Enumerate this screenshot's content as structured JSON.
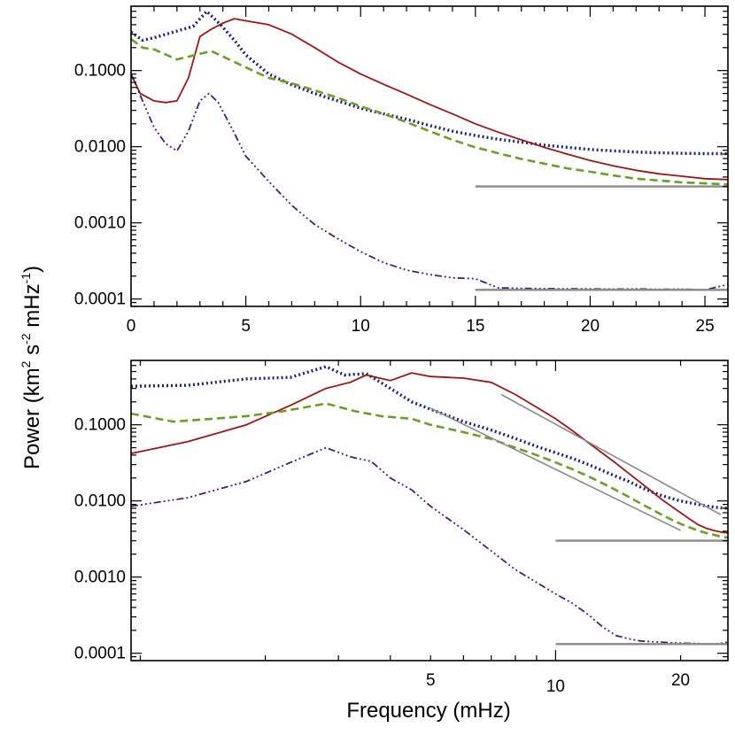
{
  "labels": {
    "ylabel_main": "Power (km",
    "ylabel_sup1": "2",
    "ylabel_s": " s",
    "ylabel_sup2": "-2",
    "ylabel_mhz": " mHz",
    "ylabel_sup3": "-1",
    "ylabel_close": ")",
    "xlabel": "Frequency (mHz)"
  },
  "chart_data": [
    {
      "type": "line",
      "panel": "top",
      "xscale": "linear",
      "yscale": "log",
      "xlim": [
        0,
        26
      ],
      "ylim": [
        8e-05,
        0.7
      ],
      "yticks": [
        0.0001,
        0.001,
        0.01,
        0.1
      ],
      "ytick_labels": [
        "0.0001",
        "0.0010",
        "0.0100",
        "0.1000"
      ],
      "xticks": [
        0,
        5,
        10,
        15,
        20,
        25
      ],
      "xtick_labels": [
        "0",
        "5",
        "10",
        "15",
        "20",
        "25"
      ],
      "series": [
        {
          "name": "dotted-blue",
          "color": "#1a237e",
          "dash": "2,3",
          "width": 3.4,
          "x": [
            0,
            0.5,
            1,
            2,
            2.7,
            3.3,
            3.9,
            4.5,
            5,
            6,
            7,
            8,
            9,
            10,
            11,
            12,
            13,
            14,
            15,
            16,
            17,
            18,
            19,
            20,
            21,
            22,
            23,
            24,
            25,
            26
          ],
          "y": [
            0.32,
            0.25,
            0.27,
            0.33,
            0.38,
            0.6,
            0.4,
            0.25,
            0.16,
            0.09,
            0.065,
            0.05,
            0.04,
            0.032,
            0.027,
            0.023,
            0.019,
            0.016,
            0.014,
            0.0125,
            0.0115,
            0.0105,
            0.0098,
            0.0092,
            0.0088,
            0.0085,
            0.0083,
            0.0082,
            0.0081,
            0.0081
          ]
        },
        {
          "name": "solid-red",
          "color": "#a31414",
          "dash": "",
          "width": 1.8,
          "x": [
            0,
            0.4,
            1,
            1.5,
            2,
            2.5,
            3,
            3.5,
            4,
            4.5,
            5,
            6,
            7,
            8,
            9,
            10,
            11,
            12,
            13,
            14,
            15,
            16,
            17,
            18,
            19,
            20,
            21,
            22,
            23,
            24,
            25,
            26
          ],
          "y": [
            0.09,
            0.05,
            0.04,
            0.038,
            0.04,
            0.08,
            0.28,
            0.35,
            0.42,
            0.48,
            0.45,
            0.4,
            0.3,
            0.2,
            0.13,
            0.09,
            0.066,
            0.049,
            0.036,
            0.027,
            0.02,
            0.0155,
            0.0123,
            0.0098,
            0.008,
            0.0066,
            0.0056,
            0.0049,
            0.0044,
            0.0041,
            0.0038,
            0.0037
          ]
        },
        {
          "name": "dashed-green",
          "color": "#6aa121",
          "dash": "9,5",
          "width": 2.6,
          "x": [
            0,
            0.5,
            1,
            2,
            2.8,
            3.5,
            4.5,
            5,
            6,
            7,
            8,
            9,
            10,
            11,
            12,
            13,
            14,
            15,
            16,
            17,
            18,
            19,
            20,
            21,
            22,
            23,
            24,
            25,
            26
          ],
          "y": [
            0.26,
            0.2,
            0.19,
            0.14,
            0.16,
            0.18,
            0.13,
            0.11,
            0.08,
            0.068,
            0.055,
            0.044,
            0.034,
            0.027,
            0.021,
            0.016,
            0.0123,
            0.0098,
            0.0082,
            0.0069,
            0.006,
            0.0052,
            0.0047,
            0.0042,
            0.0038,
            0.0036,
            0.0034,
            0.0033,
            0.0032
          ]
        },
        {
          "name": "dash-dot-purple",
          "color": "#4b1a7a",
          "dash": "8,3,2,3,2,3,2,3",
          "width": 1.8,
          "x": [
            0,
            0.5,
            1,
            1.5,
            2,
            2.5,
            3,
            3.4,
            3.8,
            4.5,
            5,
            6,
            7,
            8,
            9,
            10,
            11,
            12,
            13,
            14,
            15,
            16,
            17,
            18,
            19,
            20,
            21,
            22,
            23,
            24,
            25,
            26
          ],
          "y": [
            0.09,
            0.04,
            0.018,
            0.011,
            0.0088,
            0.016,
            0.04,
            0.05,
            0.038,
            0.015,
            0.0075,
            0.0035,
            0.0017,
            0.00095,
            0.00062,
            0.00042,
            0.0003,
            0.00024,
            0.00021,
            0.00019,
            0.000185,
            0.00014,
            0.000138,
            0.000137,
            0.000136,
            0.000136,
            0.000135,
            0.000136,
            0.000134,
            0.000135,
            0.000132,
            0.000155
          ]
        },
        {
          "name": "noise-level-upper",
          "color": "#8a8a8a",
          "dash": "",
          "width": 2.4,
          "x": [
            15,
            26
          ],
          "y": [
            0.003,
            0.003
          ]
        },
        {
          "name": "noise-level-lower",
          "color": "#8a8a8a",
          "dash": "",
          "width": 2.4,
          "x": [
            15,
            26
          ],
          "y": [
            0.000132,
            0.000132
          ]
        }
      ]
    },
    {
      "type": "line",
      "panel": "bottom",
      "xscale": "log",
      "yscale": "log",
      "xlim": [
        0.95,
        26
      ],
      "ylim": [
        8e-05,
        0.7
      ],
      "yticks": [
        0.0001,
        0.001,
        0.01,
        0.1
      ],
      "ytick_labels": [
        "0.0001",
        "0.0010",
        "0.0100",
        "0.1000"
      ],
      "xticks": [
        5,
        10,
        20
      ],
      "xtick_labels": [
        "5",
        "10",
        "20"
      ],
      "series": [
        {
          "name": "dotted-blue",
          "color": "#1a237e",
          "dash": "2,3",
          "width": 3.4,
          "x": [
            0.95,
            1.3,
            1.8,
            2.3,
            2.8,
            3.1,
            3.5,
            4,
            4.5,
            5,
            6,
            7,
            8,
            9,
            10,
            11,
            12,
            13,
            14,
            15,
            16,
            17,
            18,
            19,
            20,
            21,
            22,
            23,
            24,
            25,
            26
          ],
          "y": [
            0.32,
            0.33,
            0.4,
            0.42,
            0.58,
            0.45,
            0.47,
            0.3,
            0.2,
            0.16,
            0.11,
            0.085,
            0.066,
            0.052,
            0.043,
            0.036,
            0.03,
            0.025,
            0.021,
            0.018,
            0.0152,
            0.0132,
            0.0118,
            0.0108,
            0.01,
            0.0095,
            0.009,
            0.0086,
            0.0083,
            0.0081,
            0.008
          ]
        },
        {
          "name": "solid-red",
          "color": "#a31414",
          "dash": "",
          "width": 1.8,
          "x": [
            0.95,
            1.3,
            1.8,
            2.3,
            2.8,
            3.2,
            3.5,
            4,
            4.5,
            5,
            6,
            7,
            8,
            9,
            10,
            11,
            12,
            13,
            14,
            15,
            16,
            17,
            18,
            19,
            20,
            21,
            22,
            23,
            24,
            25,
            26
          ],
          "y": [
            0.042,
            0.06,
            0.1,
            0.18,
            0.3,
            0.36,
            0.45,
            0.38,
            0.48,
            0.43,
            0.41,
            0.36,
            0.25,
            0.17,
            0.12,
            0.083,
            0.058,
            0.042,
            0.031,
            0.023,
            0.0175,
            0.0135,
            0.0105,
            0.0085,
            0.007,
            0.0058,
            0.0049,
            0.0044,
            0.0041,
            0.0039,
            0.0038
          ]
        },
        {
          "name": "dashed-green",
          "color": "#6aa121",
          "dash": "9,5",
          "width": 2.6,
          "x": [
            0.95,
            1.2,
            1.5,
            1.8,
            2.2,
            2.8,
            3.3,
            3.8,
            4.5,
            5,
            6,
            7,
            8,
            9,
            10,
            11,
            12,
            13,
            14,
            15,
            16,
            17,
            18,
            19,
            20,
            21,
            22,
            23,
            24,
            25,
            26
          ],
          "y": [
            0.14,
            0.11,
            0.12,
            0.13,
            0.15,
            0.19,
            0.15,
            0.13,
            0.12,
            0.1,
            0.08,
            0.065,
            0.05,
            0.04,
            0.032,
            0.026,
            0.021,
            0.017,
            0.0138,
            0.0113,
            0.0093,
            0.0078,
            0.0066,
            0.0057,
            0.005,
            0.0045,
            0.0041,
            0.0038,
            0.0036,
            0.0034,
            0.0033
          ]
        },
        {
          "name": "dash-dot-purple",
          "color": "#4b1a7a",
          "dash": "8,3,2,3,2,3,2,3",
          "width": 1.8,
          "x": [
            0.95,
            1.3,
            1.8,
            2.3,
            2.8,
            3.2,
            3.6,
            4,
            4.5,
            5,
            6,
            7,
            8,
            9,
            10,
            11,
            12,
            13,
            14,
            15,
            16,
            17,
            18,
            19,
            20,
            21,
            22,
            23,
            24,
            25,
            26
          ],
          "y": [
            0.0085,
            0.011,
            0.018,
            0.032,
            0.05,
            0.038,
            0.033,
            0.02,
            0.014,
            0.0085,
            0.0042,
            0.0022,
            0.00125,
            0.00085,
            0.0006,
            0.00045,
            0.00032,
            0.00022,
            0.00017,
            0.000155,
            0.000145,
            0.000142,
            0.00014,
            0.000137,
            0.000136,
            0.000135,
            0.000134,
            0.000133,
            0.000132,
            0.000135,
            0.00014
          ]
        },
        {
          "name": "fit-line-1",
          "color": "#8a8a8a",
          "dash": "",
          "width": 1.6,
          "x": [
            5,
            20
          ],
          "y": [
            0.165,
            0.0041
          ]
        },
        {
          "name": "fit-line-2",
          "color": "#8a8a8a",
          "dash": "",
          "width": 1.6,
          "x": [
            7.4,
            25
          ],
          "y": [
            0.25,
            0.0066
          ]
        },
        {
          "name": "noise-level-upper",
          "color": "#8a8a8a",
          "dash": "",
          "width": 2.4,
          "x": [
            10,
            26
          ],
          "y": [
            0.003,
            0.003
          ]
        },
        {
          "name": "noise-level-lower",
          "color": "#8a8a8a",
          "dash": "",
          "width": 2.4,
          "x": [
            10,
            26
          ],
          "y": [
            0.000132,
            0.000132
          ]
        }
      ]
    }
  ]
}
